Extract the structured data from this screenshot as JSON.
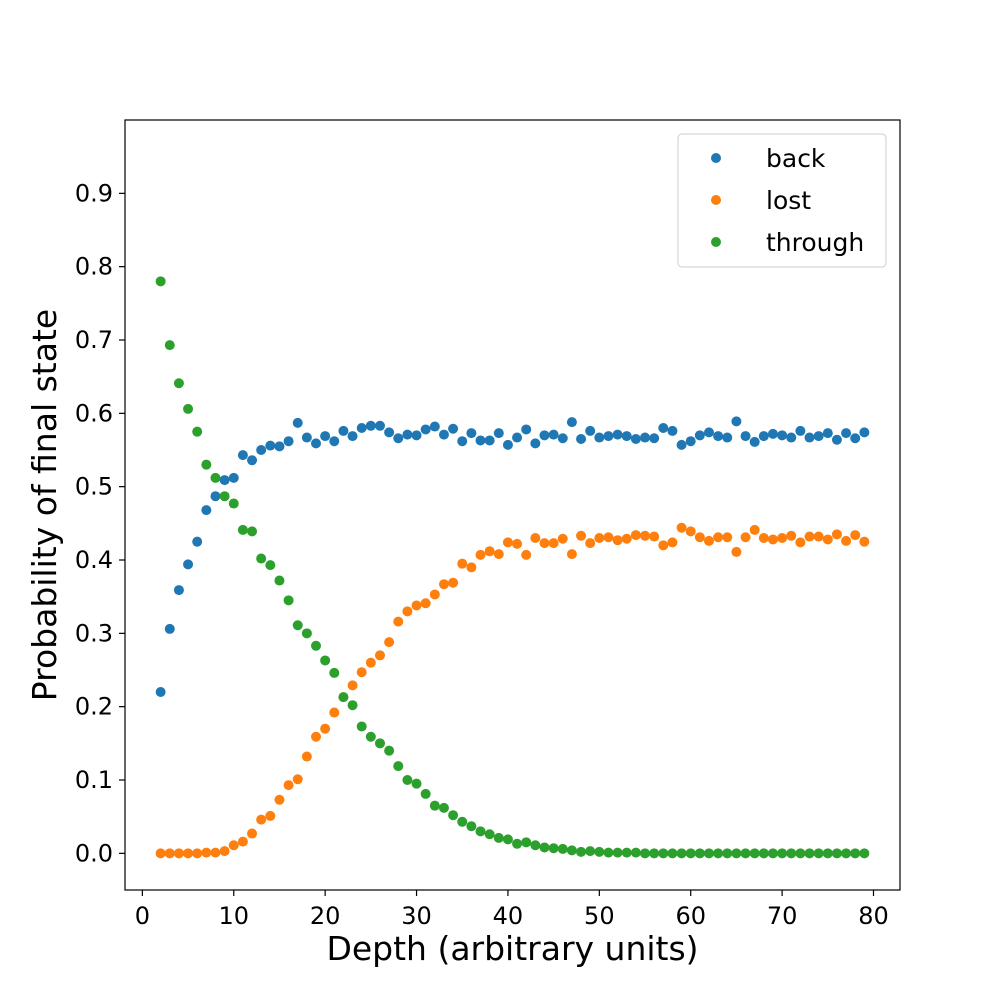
{
  "chart_data": {
    "type": "scatter",
    "title": "",
    "xlabel": "Depth (arbitrary units)",
    "ylabel": "Probability of final state",
    "xlim": [
      -1.9,
      82.9
    ],
    "ylim": [
      -0.05,
      1.0
    ],
    "xticks": [
      "0",
      "10",
      "20",
      "30",
      "40",
      "50",
      "60",
      "70",
      "80"
    ],
    "yticks": [
      "0.0",
      "0.1",
      "0.2",
      "0.3",
      "0.4",
      "0.5",
      "0.6",
      "0.7",
      "0.8",
      "0.9"
    ],
    "grid": false,
    "legend_position": "top-right",
    "x": [
      2,
      3,
      4,
      5,
      6,
      7,
      8,
      9,
      10,
      11,
      12,
      13,
      14,
      15,
      16,
      17,
      18,
      19,
      20,
      21,
      22,
      23,
      24,
      25,
      26,
      27,
      28,
      29,
      30,
      31,
      32,
      33,
      34,
      35,
      36,
      37,
      38,
      39,
      40,
      41,
      42,
      43,
      44,
      45,
      46,
      47,
      48,
      49,
      50,
      51,
      52,
      53,
      54,
      55,
      56,
      57,
      58,
      59,
      60,
      61,
      62,
      63,
      64,
      65,
      66,
      67,
      68,
      69,
      70,
      71,
      72,
      73,
      74,
      75,
      76,
      77,
      78,
      79
    ],
    "series": [
      {
        "name": "back",
        "color": "#1f77b4",
        "values": [
          0.22,
          0.306,
          0.359,
          0.394,
          0.425,
          0.468,
          0.487,
          0.509,
          0.512,
          0.543,
          0.536,
          0.55,
          0.556,
          0.555,
          0.562,
          0.587,
          0.567,
          0.559,
          0.569,
          0.562,
          0.576,
          0.569,
          0.58,
          0.583,
          0.583,
          0.574,
          0.566,
          0.571,
          0.57,
          0.578,
          0.582,
          0.571,
          0.579,
          0.562,
          0.573,
          0.563,
          0.563,
          0.573,
          0.557,
          0.567,
          0.578,
          0.559,
          0.57,
          0.571,
          0.566,
          0.588,
          0.565,
          0.576,
          0.567,
          0.569,
          0.571,
          0.569,
          0.565,
          0.567,
          0.566,
          0.58,
          0.576,
          0.557,
          0.562,
          0.57,
          0.574,
          0.569,
          0.567,
          0.589,
          0.569,
          0.561,
          0.569,
          0.572,
          0.57,
          0.567,
          0.576,
          0.567,
          0.569,
          0.573,
          0.564,
          0.573,
          0.566,
          0.574
        ]
      },
      {
        "name": "lost",
        "color": "#ff7f0e",
        "values": [
          0.0,
          0.0,
          0.0,
          0.0,
          0.0,
          0.001,
          0.001,
          0.003,
          0.011,
          0.016,
          0.027,
          0.046,
          0.051,
          0.073,
          0.093,
          0.101,
          0.132,
          0.159,
          0.17,
          0.192,
          0.213,
          0.229,
          0.247,
          0.26,
          0.27,
          0.288,
          0.316,
          0.33,
          0.338,
          0.341,
          0.353,
          0.367,
          0.369,
          0.395,
          0.39,
          0.407,
          0.412,
          0.408,
          0.424,
          0.422,
          0.407,
          0.43,
          0.423,
          0.423,
          0.429,
          0.408,
          0.433,
          0.423,
          0.43,
          0.431,
          0.427,
          0.429,
          0.434,
          0.433,
          0.432,
          0.42,
          0.424,
          0.444,
          0.439,
          0.431,
          0.426,
          0.431,
          0.431,
          0.411,
          0.431,
          0.441,
          0.43,
          0.428,
          0.43,
          0.433,
          0.424,
          0.432,
          0.432,
          0.428,
          0.435,
          0.426,
          0.434,
          0.425
        ]
      },
      {
        "name": "through",
        "color": "#2ca02c",
        "values": [
          0.78,
          0.693,
          0.641,
          0.606,
          0.575,
          0.53,
          0.512,
          0.487,
          0.477,
          0.441,
          0.439,
          0.402,
          0.393,
          0.372,
          0.345,
          0.311,
          0.3,
          0.283,
          0.263,
          0.246,
          0.213,
          0.202,
          0.173,
          0.159,
          0.15,
          0.14,
          0.119,
          0.1,
          0.095,
          0.081,
          0.065,
          0.062,
          0.052,
          0.043,
          0.037,
          0.03,
          0.026,
          0.021,
          0.019,
          0.013,
          0.015,
          0.011,
          0.008,
          0.007,
          0.006,
          0.004,
          0.002,
          0.003,
          0.002,
          0.001,
          0.001,
          0.001,
          0.001,
          0.0,
          0.0,
          0.0,
          0.0,
          0.0,
          0.0,
          0.0,
          0.0,
          0.0,
          0.0,
          0.0,
          0.0,
          0.0,
          0.0,
          0.0,
          0.0,
          0.0,
          0.0,
          0.0,
          0.0,
          0.0,
          0.0,
          0.0,
          0.0,
          0.0
        ]
      }
    ]
  }
}
